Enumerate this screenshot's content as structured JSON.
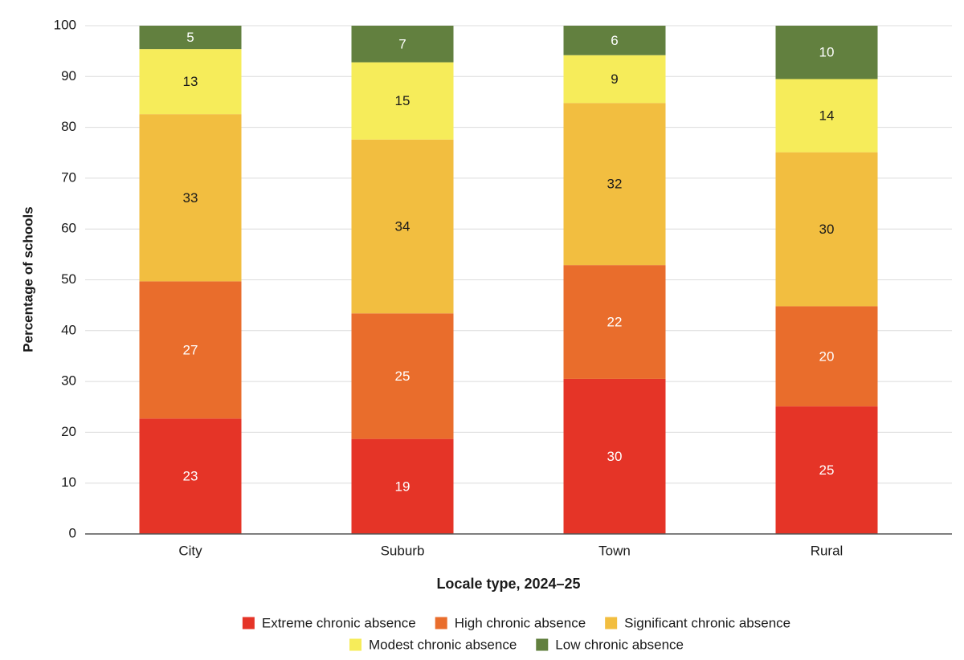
{
  "chart_data": {
    "type": "bar",
    "stacked": true,
    "title": "",
    "xlabel": "Locale type, 2024–25",
    "ylabel": "Percentage of schools",
    "ylim": [
      0,
      100
    ],
    "y_ticks": [
      "0",
      "10",
      "20",
      "30",
      "40",
      "50",
      "60",
      "70",
      "80",
      "90",
      "100"
    ],
    "grid": true,
    "legend_position": "bottom",
    "categories": [
      "City",
      "Suburb",
      "Town",
      "Rural"
    ],
    "series": [
      {
        "name": "Extreme chronic absence",
        "color": "#e53427",
        "label_color": "#ffffff",
        "values": [
          23,
          19,
          30,
          25
        ],
        "plot_values": [
          22.7,
          18.7,
          30.5,
          25.1
        ]
      },
      {
        "name": "High chronic absence",
        "color": "#e96d2c",
        "label_color": "#ffffff",
        "values": [
          27,
          25,
          22,
          20
        ],
        "plot_values": [
          27.0,
          24.7,
          22.4,
          19.7
        ]
      },
      {
        "name": "Significant chronic absence",
        "color": "#f2be40",
        "label_color": "#1a1a1a",
        "values": [
          33,
          34,
          32,
          30
        ],
        "plot_values": [
          32.9,
          34.2,
          31.9,
          30.3
        ]
      },
      {
        "name": "Modest chronic absence",
        "color": "#f6ec5a",
        "label_color": "#1a1a1a",
        "values": [
          13,
          15,
          9,
          14
        ],
        "plot_values": [
          12.8,
          15.2,
          9.4,
          14.4
        ]
      },
      {
        "name": "Low chronic absence",
        "color": "#62803f",
        "label_color": "#ffffff",
        "values": [
          5,
          7,
          6,
          10
        ],
        "plot_values": [
          4.6,
          7.2,
          5.8,
          10.5
        ]
      }
    ]
  }
}
